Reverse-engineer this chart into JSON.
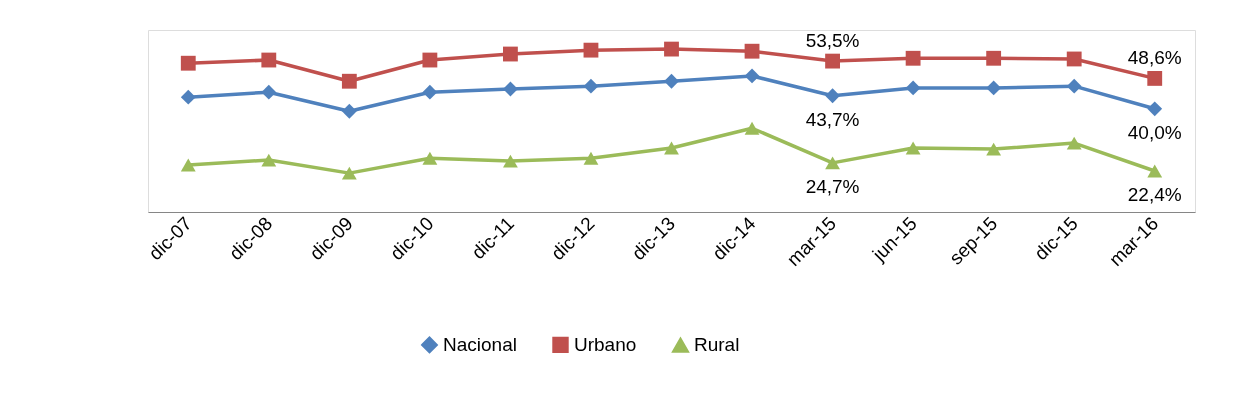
{
  "chart_data": {
    "type": "line",
    "categories": [
      "dic-07",
      "dic-08",
      "dic-09",
      "dic-10",
      "dic-11",
      "dic-12",
      "dic-13",
      "dic-14",
      "mar-15",
      "jun-15",
      "sep-15",
      "dic-15",
      "mar-16"
    ],
    "series": [
      {
        "name": "Nacional",
        "color": "#4f81bd",
        "marker": "diamond",
        "values": [
          43.3,
          44.7,
          39.3,
          44.7,
          45.6,
          46.4,
          47.8,
          49.3,
          43.7,
          45.9,
          45.9,
          46.4,
          40.0
        ],
        "value_labels": [
          null,
          null,
          null,
          null,
          null,
          null,
          null,
          null,
          "43,7%",
          null,
          null,
          null,
          "40,0%"
        ]
      },
      {
        "name": "Urbano",
        "color": "#c0504d",
        "marker": "square",
        "values": [
          52.9,
          53.8,
          47.8,
          53.8,
          55.5,
          56.6,
          56.9,
          56.3,
          53.5,
          54.3,
          54.3,
          54.1,
          48.6
        ],
        "value_labels": [
          null,
          null,
          null,
          null,
          null,
          null,
          null,
          null,
          "53,5%",
          null,
          null,
          null,
          "48,6%"
        ]
      },
      {
        "name": "Rural",
        "color": "#9bbb59",
        "marker": "triangle",
        "values": [
          24.1,
          25.5,
          21.8,
          26.0,
          25.2,
          26.0,
          28.9,
          34.5,
          24.7,
          28.9,
          28.6,
          30.3,
          22.4
        ],
        "value_labels": [
          null,
          null,
          null,
          null,
          null,
          null,
          null,
          null,
          "24,7%",
          null,
          null,
          null,
          "22,4%"
        ]
      }
    ],
    "ylim": [
      10.8,
      62.3
    ],
    "tick_labels": "x",
    "grid": false,
    "legend": "bottom",
    "line_style": "solid"
  }
}
